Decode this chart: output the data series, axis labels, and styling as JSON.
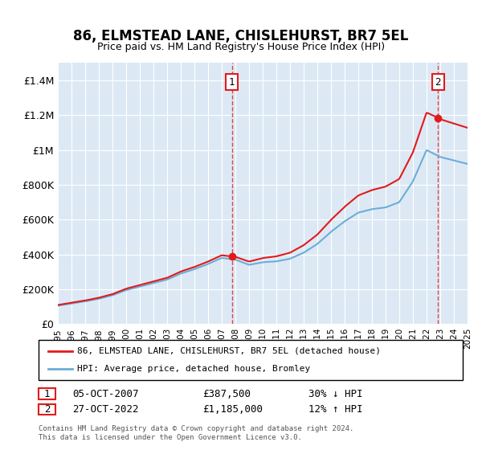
{
  "title": "86, ELMSTEAD LANE, CHISLEHURST, BR7 5EL",
  "subtitle": "Price paid vs. HM Land Registry's House Price Index (HPI)",
  "ylim": [
    0,
    1500000
  ],
  "yticks": [
    0,
    200000,
    400000,
    600000,
    800000,
    1000000,
    1200000,
    1400000
  ],
  "ytick_labels": [
    "£0",
    "£200K",
    "£400K",
    "£600K",
    "£800K",
    "£1M",
    "£1.2M",
    "£1.4M"
  ],
  "background_color": "#dce9f5",
  "plot_bg": "#dce9f5",
  "hpi_color": "#6baed6",
  "price_color": "#e31a1c",
  "legend_label_price": "86, ELMSTEAD LANE, CHISLEHURST, BR7 5EL (detached house)",
  "legend_label_hpi": "HPI: Average price, detached house, Bromley",
  "annotation1_label": "1",
  "annotation1_date": "05-OCT-2007",
  "annotation1_price": "£387,500",
  "annotation1_pct": "30% ↓ HPI",
  "annotation2_label": "2",
  "annotation2_date": "27-OCT-2022",
  "annotation2_price": "£1,185,000",
  "annotation2_pct": "12% ↑ HPI",
  "footnote": "Contains HM Land Registry data © Crown copyright and database right 2024.\nThis data is licensed under the Open Government Licence v3.0.",
  "hpi_years": [
    1995,
    1996,
    1997,
    1998,
    1999,
    2000,
    2001,
    2002,
    2003,
    2004,
    2005,
    2006,
    2007,
    2008,
    2009,
    2010,
    2011,
    2012,
    2013,
    2014,
    2015,
    2016,
    2017,
    2018,
    2019,
    2020,
    2021,
    2022,
    2023,
    2024,
    2025
  ],
  "hpi_values": [
    105000,
    118000,
    130000,
    145000,
    165000,
    195000,
    215000,
    235000,
    255000,
    290000,
    315000,
    345000,
    380000,
    370000,
    340000,
    355000,
    360000,
    375000,
    410000,
    460000,
    530000,
    590000,
    640000,
    660000,
    670000,
    700000,
    820000,
    1000000,
    960000,
    940000,
    920000
  ],
  "sale1_year": 2007.75,
  "sale1_price": 387500,
  "sale2_year": 2022.83,
  "sale2_price": 1185000,
  "xmin": 1995,
  "xmax": 2025
}
